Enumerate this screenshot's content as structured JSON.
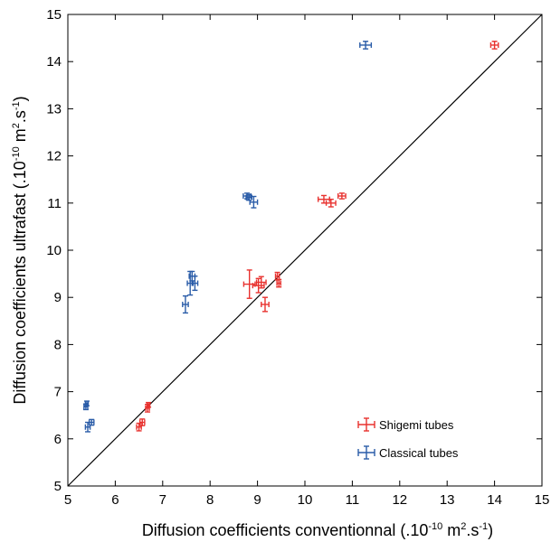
{
  "chart_data": {
    "type": "scatter",
    "xlim": [
      5,
      15
    ],
    "ylim": [
      5,
      15
    ],
    "x_ticks": [
      5,
      6,
      7,
      8,
      9,
      10,
      11,
      12,
      13,
      14,
      15
    ],
    "y_ticks": [
      5,
      6,
      7,
      8,
      9,
      10,
      11,
      12,
      13,
      14,
      15
    ],
    "xlabel_main": "Diffusion coefficients conventionnal (.10",
    "xlabel_exp": "-10",
    "xlabel_unit": " m",
    "xlabel_sq": "2",
    "xlabel_s": ".s",
    "xlabel_sexp": "-1",
    "xlabel_end": ")",
    "ylabel_main": "Diffusion coefficients ultrafast (.10",
    "ylabel_exp": "-10",
    "ylabel_unit": " m",
    "ylabel_sq": "2",
    "ylabel_s": ".s",
    "ylabel_sexp": "-1",
    "ylabel_end": ")",
    "grid": false,
    "legend_position": "bottom-right",
    "reference_line": {
      "from": [
        5,
        5
      ],
      "to": [
        15,
        15
      ],
      "color": "#000000"
    },
    "series": [
      {
        "name": "Shigemi tubes",
        "color": "#e8322f",
        "points": [
          {
            "x": 6.5,
            "y": 6.25,
            "xerr": 0.05,
            "yerr": 0.08
          },
          {
            "x": 6.57,
            "y": 6.35,
            "xerr": 0.05,
            "yerr": 0.07
          },
          {
            "x": 6.68,
            "y": 6.65,
            "xerr": 0.04,
            "yerr": 0.08
          },
          {
            "x": 6.7,
            "y": 6.72,
            "xerr": 0.03,
            "yerr": 0.05
          },
          {
            "x": 8.83,
            "y": 9.28,
            "xerr": 0.12,
            "yerr": 0.3
          },
          {
            "x": 9.02,
            "y": 9.25,
            "xerr": 0.12,
            "yerr": 0.15
          },
          {
            "x": 9.08,
            "y": 9.32,
            "xerr": 0.1,
            "yerr": 0.12
          },
          {
            "x": 9.16,
            "y": 8.85,
            "xerr": 0.08,
            "yerr": 0.15
          },
          {
            "x": 9.42,
            "y": 9.45,
            "xerr": 0.04,
            "yerr": 0.08
          },
          {
            "x": 9.45,
            "y": 9.3,
            "xerr": 0.04,
            "yerr": 0.08
          },
          {
            "x": 10.4,
            "y": 11.08,
            "xerr": 0.12,
            "yerr": 0.08
          },
          {
            "x": 10.55,
            "y": 11.0,
            "xerr": 0.1,
            "yerr": 0.08
          },
          {
            "x": 10.78,
            "y": 11.15,
            "xerr": 0.08,
            "yerr": 0.06
          },
          {
            "x": 14.0,
            "y": 14.35,
            "xerr": 0.08,
            "yerr": 0.08
          }
        ]
      },
      {
        "name": "Classical tubes",
        "color": "#2a5ca8",
        "points": [
          {
            "x": 5.38,
            "y": 6.68,
            "xerr": 0.04,
            "yerr": 0.06
          },
          {
            "x": 5.4,
            "y": 6.75,
            "xerr": 0.03,
            "yerr": 0.05
          },
          {
            "x": 5.42,
            "y": 6.25,
            "xerr": 0.05,
            "yerr": 0.1
          },
          {
            "x": 5.5,
            "y": 6.35,
            "xerr": 0.05,
            "yerr": 0.06
          },
          {
            "x": 7.48,
            "y": 8.85,
            "xerr": 0.06,
            "yerr": 0.18
          },
          {
            "x": 7.58,
            "y": 9.3,
            "xerr": 0.06,
            "yerr": 0.25
          },
          {
            "x": 7.62,
            "y": 9.45,
            "xerr": 0.06,
            "yerr": 0.1
          },
          {
            "x": 7.68,
            "y": 9.3,
            "xerr": 0.06,
            "yerr": 0.15
          },
          {
            "x": 8.78,
            "y": 11.15,
            "xerr": 0.08,
            "yerr": 0.06
          },
          {
            "x": 8.82,
            "y": 11.12,
            "xerr": 0.06,
            "yerr": 0.06
          },
          {
            "x": 8.92,
            "y": 11.02,
            "xerr": 0.08,
            "yerr": 0.12
          },
          {
            "x": 11.28,
            "y": 14.35,
            "xerr": 0.12,
            "yerr": 0.08
          }
        ]
      }
    ]
  }
}
